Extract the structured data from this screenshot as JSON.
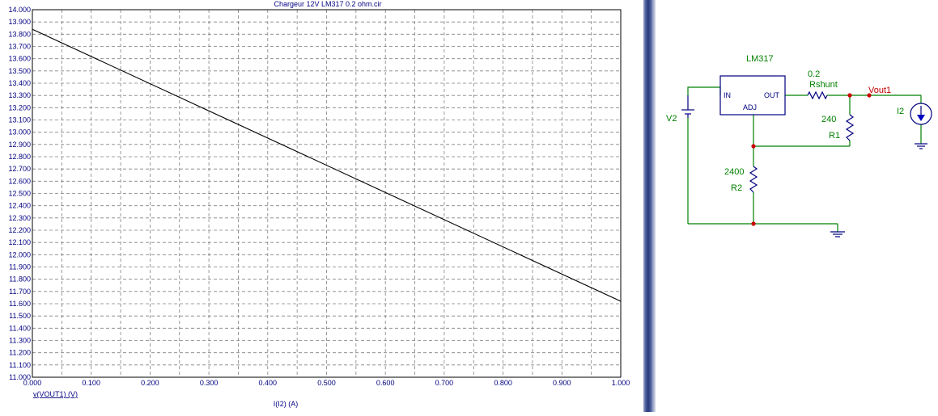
{
  "chart_data": {
    "type": "line",
    "title": "Chargeur 12V LM317 0.2 ohm.cir",
    "xlabel": "I(I2) (A)",
    "ylabel": "v(VOUT1) (V)",
    "xlim": [
      0,
      1.0
    ],
    "ylim": [
      11.0,
      14.0
    ],
    "x_ticks": [
      "0.000",
      "0.100",
      "0.200",
      "0.300",
      "0.400",
      "0.500",
      "0.600",
      "0.700",
      "0.800",
      "0.900",
      "1.000"
    ],
    "y_ticks": [
      "11.000",
      "11.100",
      "11.200",
      "11.300",
      "11.400",
      "11.500",
      "11.600",
      "11.700",
      "11.800",
      "11.900",
      "12.000",
      "12.100",
      "12.200",
      "12.300",
      "12.400",
      "12.500",
      "12.600",
      "12.700",
      "12.800",
      "12.900",
      "13.000",
      "13.100",
      "13.200",
      "13.300",
      "13.400",
      "13.500",
      "13.600",
      "13.700",
      "13.800",
      "13.900",
      "14.000"
    ],
    "grid": true,
    "series": [
      {
        "x": [
          0.0,
          1.0
        ],
        "y": [
          13.84,
          11.62
        ],
        "color": "#000000"
      }
    ]
  },
  "schematic": {
    "regulator_name": "LM317",
    "pin_in": "IN",
    "pin_out": "OUT",
    "pin_adj": "ADJ",
    "rshunt_value": "0.2",
    "rshunt_name": "Rshunt",
    "node_label": "Vout1",
    "r1_value": "240",
    "r1_name": "R1",
    "r2_value": "2400",
    "r2_name": "R2",
    "source_v": "V2",
    "source_i": "I2",
    "colors": {
      "wire": "#008000",
      "component": "#000080",
      "node_label": "#c00000",
      "label": "#008000",
      "dot": "#cc0000"
    }
  }
}
